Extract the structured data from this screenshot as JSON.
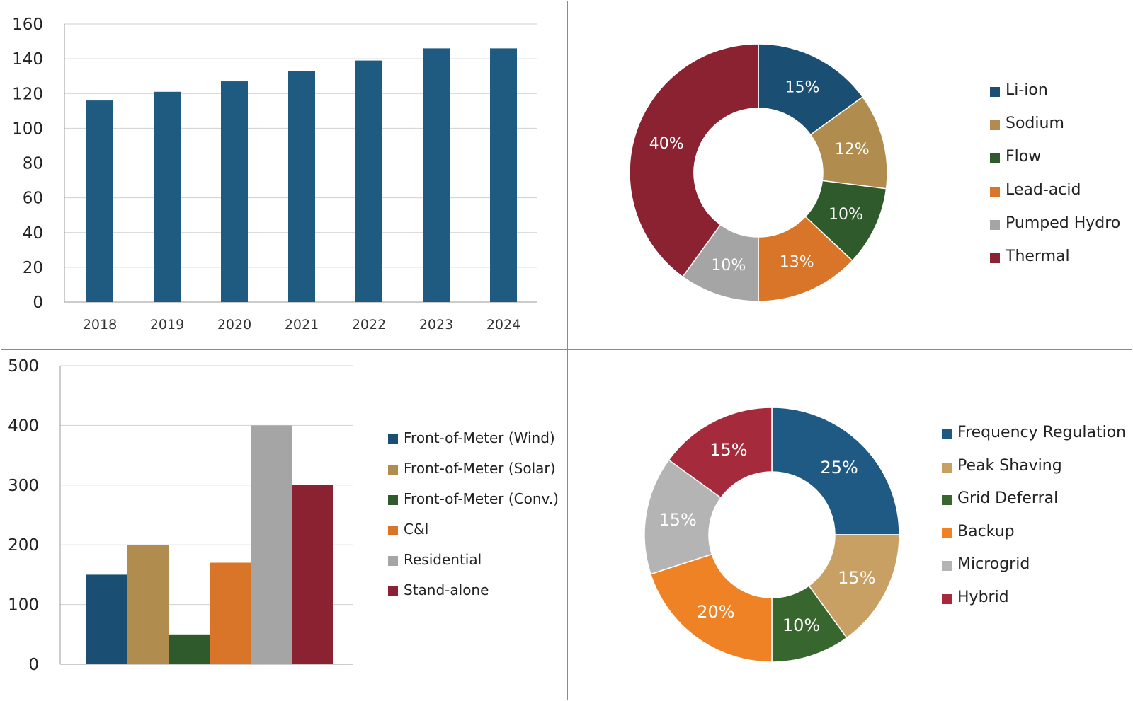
{
  "chart_data": [
    {
      "type": "bar",
      "categories": [
        "2018",
        "2019",
        "2020",
        "2021",
        "2022",
        "2023",
        "2024"
      ],
      "values": [
        116,
        121,
        127,
        133,
        139,
        146,
        146
      ],
      "ylim": [
        0,
        160
      ],
      "yticks": [
        0,
        20,
        40,
        60,
        80,
        100,
        120,
        140,
        160
      ],
      "grid": true,
      "color": "#1f5a80"
    },
    {
      "type": "pie",
      "donut": true,
      "labels": [
        "Li-ion",
        "Sodium",
        "Flow",
        "Lead-acid",
        "Pumped Hydro",
        "Thermal"
      ],
      "values": [
        15,
        12,
        10,
        13,
        10,
        40
      ],
      "value_labels": [
        "15%",
        "12%",
        "10%",
        "13%",
        "10%",
        "40%"
      ],
      "colors": [
        "#1a4f73",
        "#b08c4f",
        "#2e5a2c",
        "#d87528",
        "#a5a5a5",
        "#8b2231"
      ],
      "legend": "right"
    },
    {
      "type": "bar",
      "categories": [
        "Front-of-Meter (Wind)",
        "Front-of-Meter (Solar)",
        "Front-of-Meter (Conv.)",
        "C&I",
        "Residential",
        "Stand-alone"
      ],
      "values": [
        150,
        200,
        50,
        170,
        400,
        300
      ],
      "ylim": [
        0,
        500
      ],
      "yticks": [
        0,
        100,
        200,
        300,
        400,
        500
      ],
      "grid": true,
      "colors": [
        "#1a4f73",
        "#b08c4f",
        "#2e5a2c",
        "#d87528",
        "#a5a5a5",
        "#8b2231"
      ],
      "legend": "right"
    },
    {
      "type": "pie",
      "donut": true,
      "labels": [
        "Frequency Regulation",
        "Peak Shaving",
        "Grid Deferral",
        "Backup",
        "Microgrid",
        "Hybrid"
      ],
      "values": [
        25,
        15,
        10,
        20,
        15,
        15
      ],
      "value_labels": [
        "25%",
        "15%",
        "10%",
        "20%",
        "15%",
        "15%"
      ],
      "colors": [
        "#1f5a85",
        "#c8a064",
        "#38662f",
        "#ee8224",
        "#b4b4b4",
        "#a52a3c"
      ],
      "legend": "right"
    }
  ]
}
